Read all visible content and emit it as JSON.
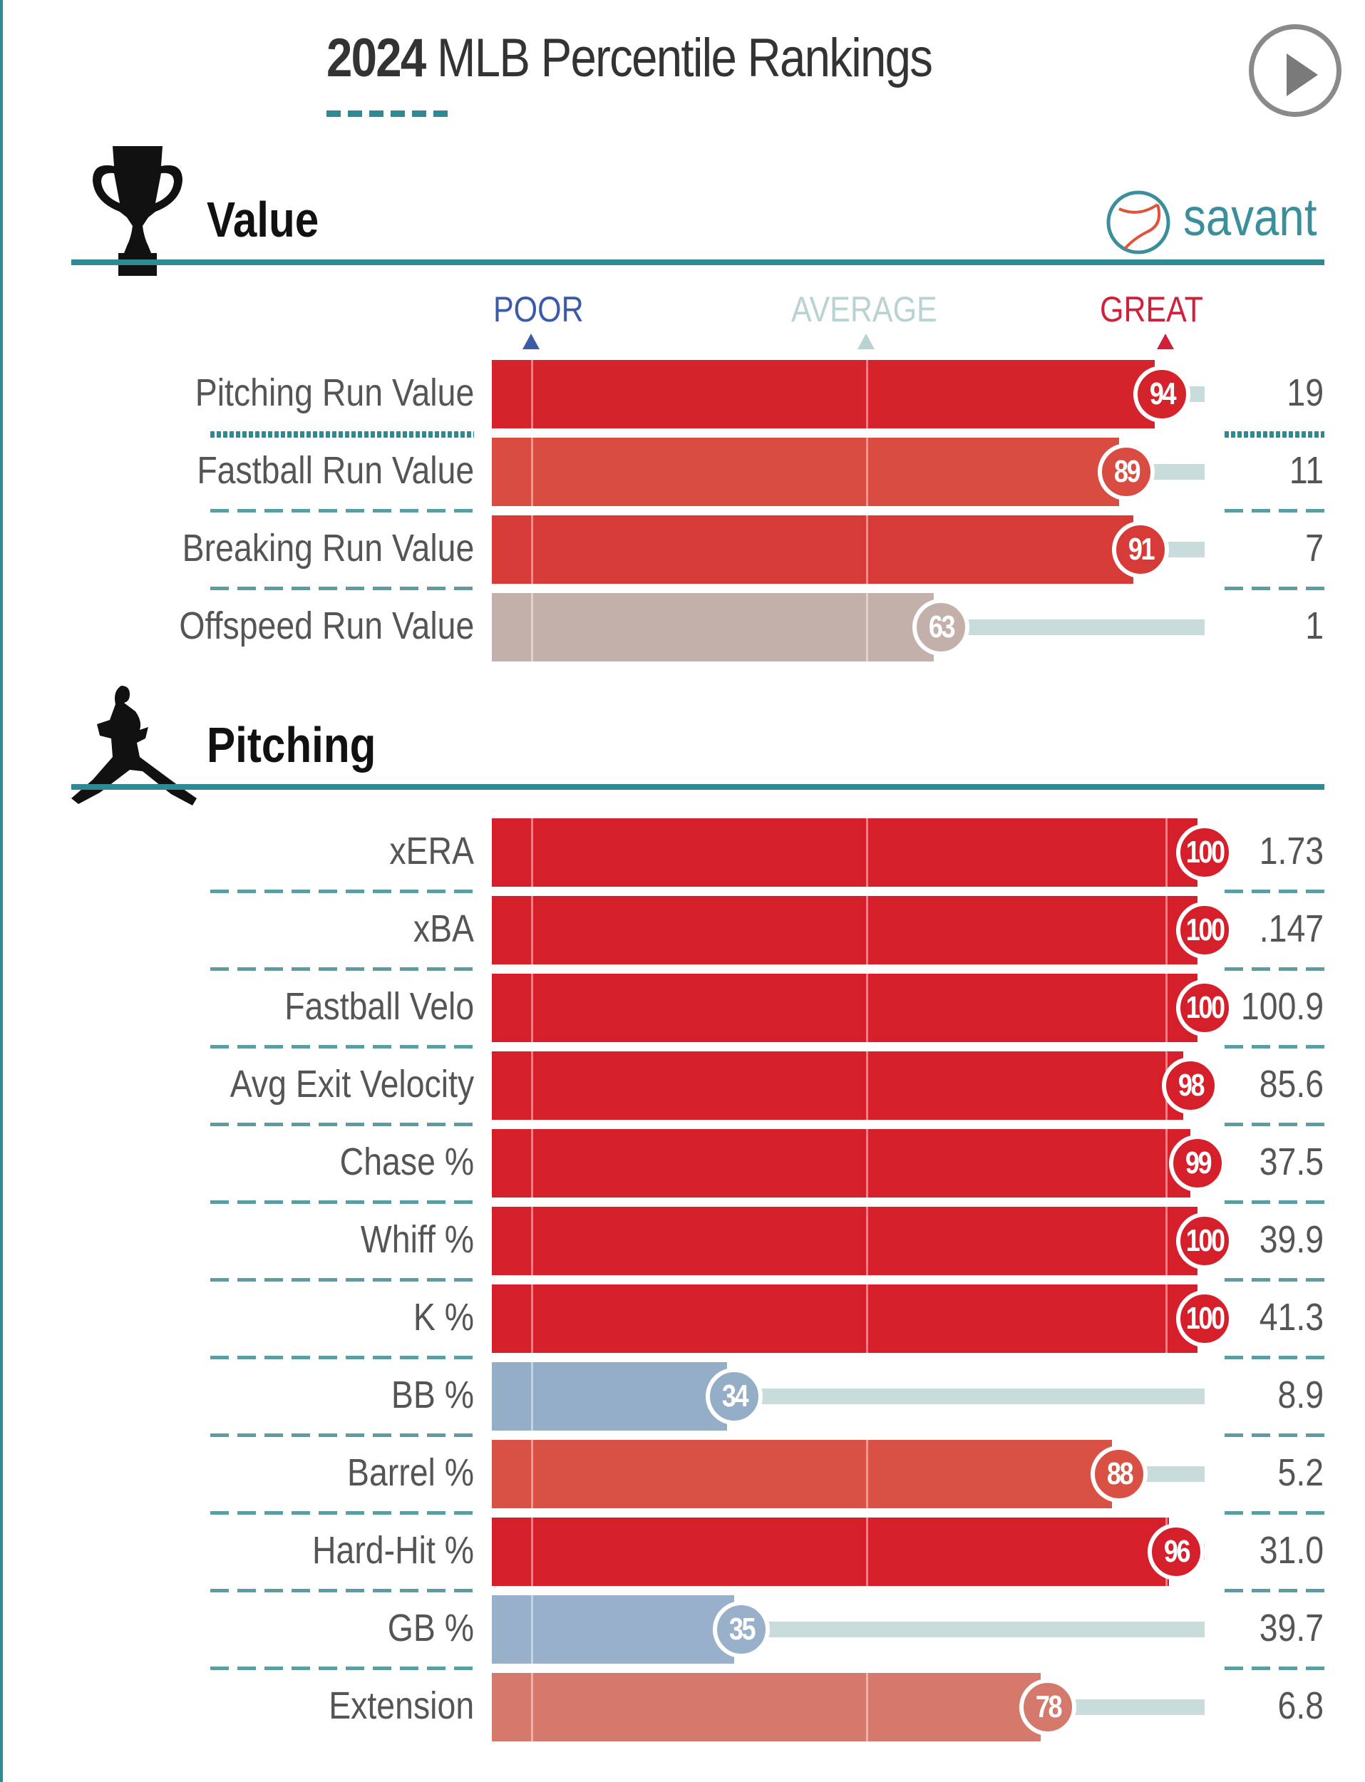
{
  "header": {
    "title_year": "2024",
    "title_rest": " MLB Percentile Rankings",
    "play_button": "play-icon"
  },
  "logo": {
    "text": "savant",
    "icon": "baseball-icon"
  },
  "scale_labels": {
    "poor": "POOR",
    "average": "AVERAGE",
    "great": "GREAT"
  },
  "colors": {
    "teal": "#2f8a93",
    "poor": "#3b5ba8",
    "average": "#b9d3d3",
    "great": "#d0213a"
  },
  "chart_data": {
    "type": "bar",
    "title": "2024 MLB Percentile Rankings",
    "xlim": [
      0,
      100
    ],
    "sections": [
      {
        "name": "Value",
        "icon": "trophy-icon",
        "rows": [
          {
            "label": "Pitching Run Value",
            "percentile": 94,
            "value": "19",
            "color": "#d5232c"
          },
          {
            "label": "Fastball Run Value",
            "percentile": 89,
            "value": "11",
            "color": "#d84c42"
          },
          {
            "label": "Breaking Run Value",
            "percentile": 91,
            "value": "7",
            "color": "#d73b38"
          },
          {
            "label": "Offspeed Run Value",
            "percentile": 63,
            "value": "1",
            "color": "#c4b0aa"
          }
        ]
      },
      {
        "name": "Pitching",
        "icon": "pitcher-icon",
        "rows": [
          {
            "label": "xERA",
            "percentile": 100,
            "value": "1.73",
            "color": "#d51f2a"
          },
          {
            "label": "xBA",
            "percentile": 100,
            "value": ".147",
            "color": "#d51f2a"
          },
          {
            "label": "Fastball Velo",
            "percentile": 100,
            "value": "100.9",
            "color": "#d51f2a"
          },
          {
            "label": "Avg Exit Velocity",
            "percentile": 98,
            "value": "85.6",
            "color": "#d51f2a"
          },
          {
            "label": "Chase %",
            "percentile": 99,
            "value": "37.5",
            "color": "#d51f2a"
          },
          {
            "label": "Whiff %",
            "percentile": 100,
            "value": "39.9",
            "color": "#d51f2a"
          },
          {
            "label": "K %",
            "percentile": 100,
            "value": "41.3",
            "color": "#d51f2a"
          },
          {
            "label": "BB %",
            "percentile": 34,
            "value": "8.9",
            "color": "#95aec8"
          },
          {
            "label": "Barrel %",
            "percentile": 88,
            "value": "5.2",
            "color": "#d85144"
          },
          {
            "label": "Hard-Hit %",
            "percentile": 96,
            "value": "31.0",
            "color": "#d51f2a"
          },
          {
            "label": "GB %",
            "percentile": 35,
            "value": "39.7",
            "color": "#98b0c9"
          },
          {
            "label": "Extension",
            "percentile": 78,
            "value": "6.8",
            "color": "#d4796b"
          }
        ]
      }
    ]
  }
}
